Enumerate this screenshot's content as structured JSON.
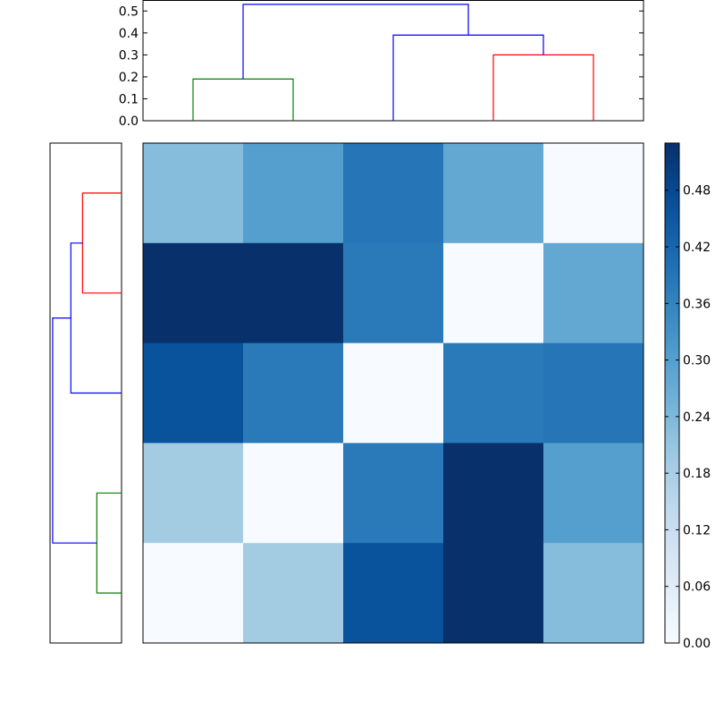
{
  "chart_data": [
    {
      "type": "dendrogram",
      "panel": "top",
      "orientation": "top",
      "yticks": [
        "0.0",
        "0.1",
        "0.2",
        "0.3",
        "0.4",
        "0.5"
      ],
      "ylim": [
        0,
        0.55
      ],
      "leaves": 5,
      "links": [
        {
          "left": 0,
          "right": 1,
          "height": 0.19,
          "color": "#008000"
        },
        {
          "left": 3,
          "right": 4,
          "height": 0.3,
          "color": "#ff0000"
        },
        {
          "left": 2,
          "right": 3.5,
          "height": 0.39,
          "color": "#0000ff"
        },
        {
          "left": 0.5,
          "right": 2.75,
          "height": 0.53,
          "color": "#0000ff"
        }
      ]
    },
    {
      "type": "dendrogram",
      "panel": "left",
      "orientation": "left",
      "xlim": [
        0.55,
        0
      ],
      "leaves": 5,
      "links": [
        {
          "left": 3,
          "right": 4,
          "height": 0.19,
          "color": "#008000"
        },
        {
          "left": 0,
          "right": 1,
          "height": 0.3,
          "color": "#ff0000"
        },
        {
          "left": 0.5,
          "right": 2,
          "height": 0.39,
          "color": "#0000ff"
        },
        {
          "left": 1.25,
          "right": 3.5,
          "height": 0.53,
          "color": "#0000ff"
        }
      ]
    },
    {
      "type": "heatmap",
      "panel": "main",
      "rows": 5,
      "cols": 5,
      "values": [
        [
          0.23,
          0.3,
          0.39,
          0.28,
          0.0
        ],
        [
          0.53,
          0.53,
          0.38,
          0.0,
          0.28
        ],
        [
          0.46,
          0.38,
          0.0,
          0.38,
          0.39
        ],
        [
          0.19,
          0.0,
          0.38,
          0.53,
          0.3
        ],
        [
          0.0,
          0.19,
          0.46,
          0.53,
          0.23
        ]
      ],
      "vmin": 0,
      "vmax": 0.53,
      "colormap": "Blues",
      "colorbar_ticks": [
        "0.00",
        "0.06",
        "0.12",
        "0.18",
        "0.24",
        "0.30",
        "0.36",
        "0.42",
        "0.48"
      ]
    }
  ]
}
